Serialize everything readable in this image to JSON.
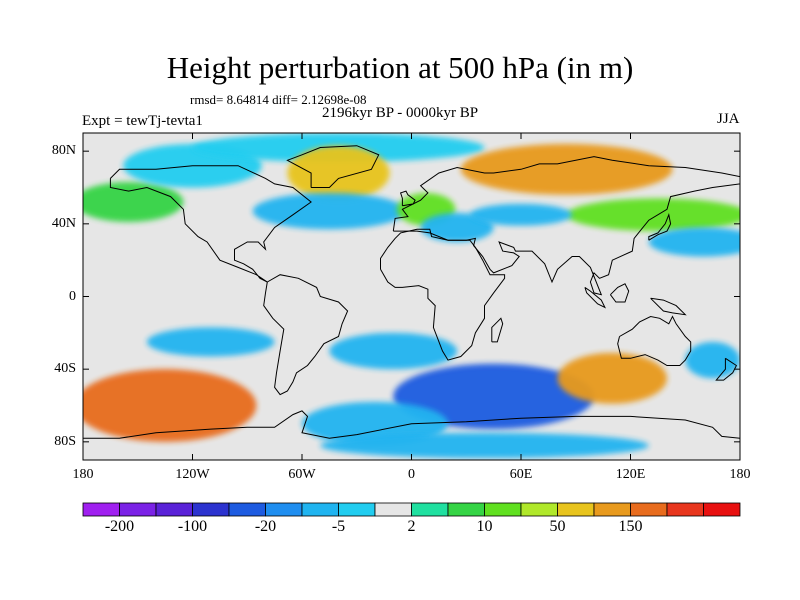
{
  "title": "Height perturbation at 500 hPa (in m)",
  "stats": "rmsd= 8.64814 diff= 2.12698e-08",
  "experiment": "Expt = tewTj-tevta1",
  "period": "2196kyr BP - 0000kyr BP",
  "season": "JJA",
  "map": {
    "projection": "cylindrical equidistant",
    "lon_range": [
      -180,
      180
    ],
    "lat_range": [
      -90,
      90
    ],
    "background_color": "#e6e6e6",
    "coastline_color": "#000000",
    "lat_ticks": [
      {
        "label": "80N",
        "value": 80
      },
      {
        "label": "40N",
        "value": 40
      },
      {
        "label": "0",
        "value": 0
      },
      {
        "label": "40S",
        "value": -40
      },
      {
        "label": "80S",
        "value": -80
      }
    ],
    "lon_ticks": [
      {
        "label": "180",
        "value": -180
      },
      {
        "label": "120W",
        "value": -120
      },
      {
        "label": "60W",
        "value": -60
      },
      {
        "label": "0",
        "value": 0
      },
      {
        "label": "60E",
        "value": 60
      },
      {
        "label": "120E",
        "value": 120
      },
      {
        "label": "180",
        "value": 180
      }
    ]
  },
  "colorbar": {
    "colors": [
      "#a020f0",
      "#7b22e6",
      "#5a22d8",
      "#2c33cf",
      "#1e5be0",
      "#1f8ef0",
      "#20b4f0",
      "#22cdf0",
      "#e6e6e6",
      "#20e0a0",
      "#35d445",
      "#60e020",
      "#b0e82a",
      "#e8c41e",
      "#e89a1e",
      "#e86c1e",
      "#e8361e",
      "#e81010"
    ],
    "labels": [
      {
        "text": "-200",
        "boundary": 1
      },
      {
        "text": "-100",
        "boundary": 3
      },
      {
        "text": "-20",
        "boundary": 5
      },
      {
        "text": "-5",
        "boundary": 7
      },
      {
        "text": "2",
        "boundary": 9
      },
      {
        "text": "10",
        "boundary": 11
      },
      {
        "text": "50",
        "boundary": 13
      },
      {
        "text": "150",
        "boundary": 15
      }
    ]
  },
  "anomalies": [
    {
      "region": "North Pacific",
      "lon": -155,
      "lat": 52,
      "rx": 30,
      "ry": 11,
      "level": 10
    },
    {
      "region": "Northeast Pacific",
      "lon": -120,
      "lat": 72,
      "rx": 38,
      "ry": 12,
      "level": 7
    },
    {
      "region": "Arctic",
      "lon": -40,
      "lat": 82,
      "rx": 80,
      "ry": 8,
      "level": 7
    },
    {
      "region": "Greenland",
      "lon": -40,
      "lat": 68,
      "rx": 28,
      "ry": 15,
      "level": 13
    },
    {
      "region": "North Atlantic",
      "lon": -45,
      "lat": 47,
      "rx": 42,
      "ry": 10,
      "level": 6
    },
    {
      "region": "Europe",
      "lon": 8,
      "lat": 48,
      "rx": 16,
      "ry": 9,
      "level": 11
    },
    {
      "region": "Mediterranean",
      "lon": 25,
      "lat": 38,
      "rx": 20,
      "ry": 8,
      "level": 6
    },
    {
      "region": "Siberia",
      "lon": 85,
      "lat": 70,
      "rx": 58,
      "ry": 14,
      "level": 14
    },
    {
      "region": "East Asia",
      "lon": 135,
      "lat": 45,
      "rx": 50,
      "ry": 9,
      "level": 11
    },
    {
      "region": "Central Asia",
      "lon": 60,
      "lat": 45,
      "rx": 28,
      "ry": 6,
      "level": 6
    },
    {
      "region": "Northwest Pacific",
      "lon": 160,
      "lat": 30,
      "rx": 30,
      "ry": 8,
      "level": 6
    },
    {
      "region": "Southeast Pacific",
      "lon": -110,
      "lat": -25,
      "rx": 35,
      "ry": 8,
      "level": 6
    },
    {
      "region": "South Atlantic",
      "lon": -10,
      "lat": -30,
      "rx": 35,
      "ry": 10,
      "level": 6
    },
    {
      "region": "South Pacific",
      "lon": -135,
      "lat": -60,
      "rx": 50,
      "ry": 20,
      "level": 15
    },
    {
      "region": "Southern Ocean Indian",
      "lon": 45,
      "lat": -55,
      "rx": 55,
      "ry": 18,
      "level": 4
    },
    {
      "region": "Southern Ocean Atlantic",
      "lon": -20,
      "lat": -70,
      "rx": 40,
      "ry": 12,
      "level": 6
    },
    {
      "region": "South of Australia",
      "lon": 110,
      "lat": -45,
      "rx": 30,
      "ry": 14,
      "level": 14
    },
    {
      "region": "Antarctica",
      "lon": 40,
      "lat": -82,
      "rx": 90,
      "ry": 7,
      "level": 6
    },
    {
      "region": "Southwest Pacific",
      "lon": 165,
      "lat": -35,
      "rx": 15,
      "ry": 10,
      "level": 6
    }
  ]
}
